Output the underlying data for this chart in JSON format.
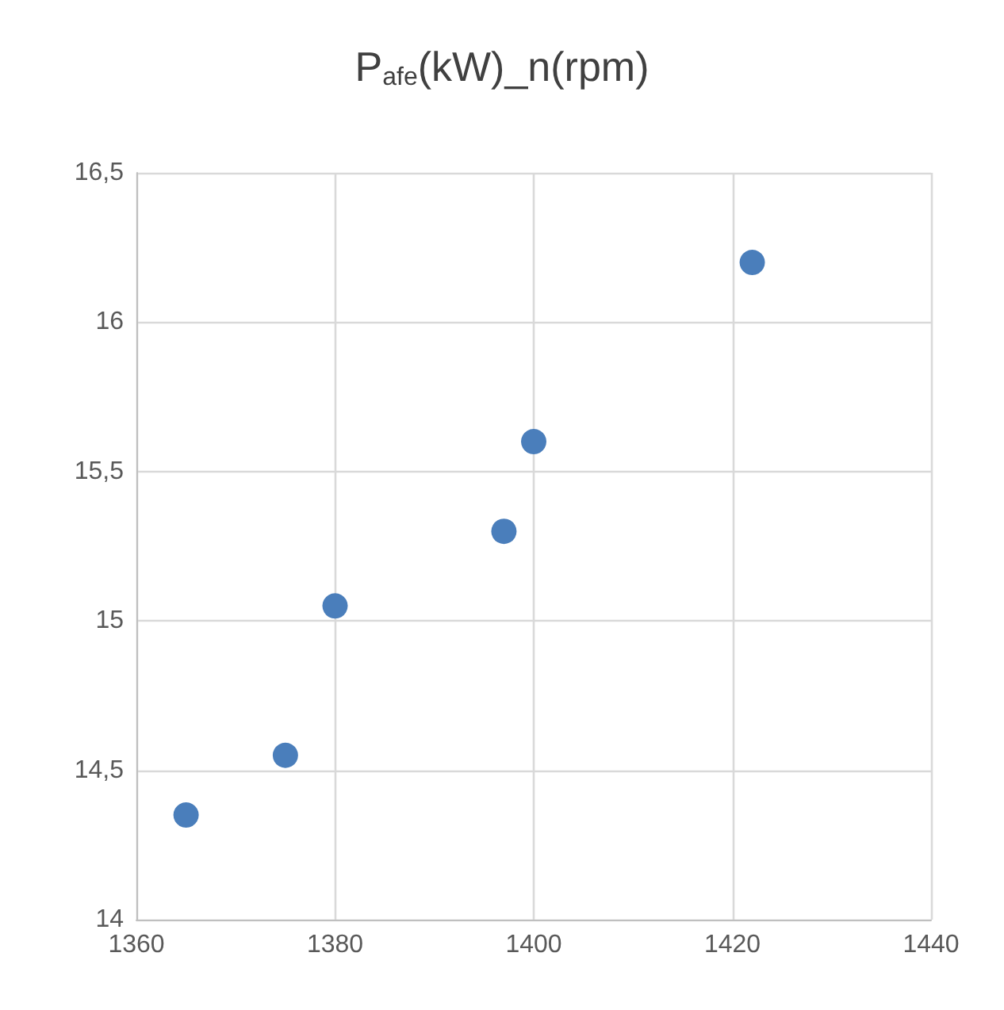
{
  "chart_data": {
    "type": "scatter",
    "title": "P$_{afe}$(kW)_n(rpm)",
    "x": [
      1365,
      1375,
      1380,
      1397,
      1400,
      1422
    ],
    "series": [
      {
        "color": "#4a7ebb",
        "values": [
          14.35,
          14.55,
          15.05,
          15.3,
          15.6,
          16.2
        ]
      }
    ],
    "xlim": [
      1360,
      1440
    ],
    "xticks": [
      1360,
      1380,
      1400,
      1420,
      1440
    ],
    "ylim": [
      14,
      16.5
    ],
    "yticks": [
      14,
      {
        "value": 14.5,
        "label": "14,5"
      },
      15,
      {
        "value": 15.5,
        "label": "15,5"
      },
      16,
      {
        "value": 16.5,
        "label": "16,5"
      }
    ],
    "grid": true,
    "marker": "circle"
  }
}
